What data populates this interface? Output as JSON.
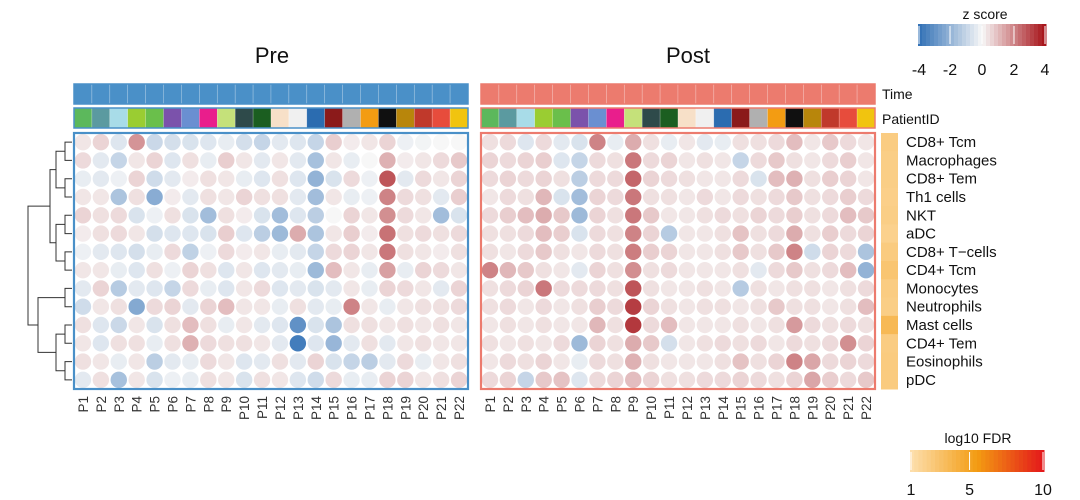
{
  "chart_data": {
    "type": "heatmap",
    "panels": [
      "Pre",
      "Post"
    ],
    "rows": [
      "CD8+ Tcm",
      "Macrophages",
      "CD8+ Tem",
      "Th1 cells",
      "NKT",
      "aDC",
      "CD8+ T−cells",
      "CD4+ Tcm",
      "Monocytes",
      "Neutrophils",
      "Mast cells",
      "CD4+ Tem",
      "Eosinophils",
      "pDC"
    ],
    "columns": [
      "P1",
      "P2",
      "P3",
      "P4",
      "P5",
      "P6",
      "P7",
      "P8",
      "P9",
      "P10",
      "P11",
      "P12",
      "P13",
      "P14",
      "P15",
      "P16",
      "P17",
      "P18",
      "P19",
      "P20",
      "P21",
      "P22"
    ],
    "annotation_tracks": [
      "Time",
      "PatientID"
    ],
    "time_colors": {
      "Pre": "#4a90c8",
      "Post": "#ec7b6e"
    },
    "patient_colors": [
      "#5cb85c",
      "#5b9aa0",
      "#a8dce8",
      "#9acd32",
      "#6abf4b",
      "#7b52ab",
      "#6a8fd1",
      "#e91e8c",
      "#c5e17a",
      "#2e4a4a",
      "#1b5e20",
      "#f7e0c8",
      "#f0f0f0",
      "#2b6cb0",
      "#8b1a1a",
      "#b0b0b0",
      "#f39c12",
      "#101010",
      "#b8860b",
      "#c0392b",
      "#e74c3c",
      "#f1c40f"
    ],
    "zscore_legend": {
      "title": "z score",
      "ticks": [
        "-4",
        "-2",
        "0",
        "2",
        "4"
      ],
      "range": [
        -4,
        4
      ],
      "low_color": "#2f6fb5",
      "mid_color": "#f7f7f7",
      "high_color": "#a50f15"
    },
    "fdr_legend": {
      "title": "log10 FDR",
      "ticks": [
        "1",
        "5",
        "10"
      ],
      "range": [
        1,
        10
      ],
      "low_color": "#fde0b0",
      "high_color": "#e3161b"
    },
    "row_fdr": [
      2.3,
      2.2,
      2.2,
      2.1,
      2.2,
      2.0,
      2.4,
      2.8,
      2.3,
      2.2,
      3.6,
      2.3,
      2.4,
      2.4
    ],
    "dendrogram_order": [
      "CD8+ Tcm",
      "Macrophages",
      "CD8+ Tem",
      "Th1 cells",
      "NKT",
      "aDC",
      "CD8+ T−cells",
      "CD4+ Tcm",
      "Monocytes",
      "Neutrophils",
      "Mast cells",
      "CD4+ Tem",
      "Eosinophils",
      "pDC"
    ],
    "pre_values": [
      [
        0.3,
        0.6,
        -0.5,
        1.7,
        -0.9,
        -0.7,
        -0.6,
        -0.5,
        -0.3,
        -0.7,
        -1.0,
        -0.4,
        -0.5,
        -1.0,
        0.7,
        0.2,
        0.3,
        0.6,
        -0.2,
        -0.1,
        0.0,
        0.0
      ],
      [
        0.5,
        -0.4,
        -1.0,
        0.3,
        0.6,
        -0.5,
        0.4,
        -0.3,
        0.7,
        0.3,
        -0.4,
        0.3,
        -0.4,
        -1.6,
        0.3,
        -0.3,
        0.0,
        1.2,
        0.2,
        0.3,
        0.5,
        0.8
      ],
      [
        -0.3,
        -0.4,
        -0.2,
        0.6,
        -0.8,
        -0.4,
        0.2,
        0.4,
        0.3,
        -0.3,
        -0.5,
        0.4,
        -0.5,
        -2.0,
        -0.6,
        0.5,
        -0.2,
        2.8,
        -0.4,
        0.5,
        0.3,
        0.6
      ],
      [
        0.3,
        0.3,
        -1.5,
        0.4,
        -2.2,
        0.2,
        -0.4,
        0.4,
        0.3,
        0.6,
        0.4,
        0.4,
        -0.4,
        -1.7,
        0.3,
        -0.3,
        -0.2,
        2.0,
        0.5,
        0.4,
        -0.4,
        0.7
      ],
      [
        0.6,
        0.4,
        0.5,
        -0.6,
        -0.2,
        0.4,
        -0.6,
        -1.7,
        0.4,
        0.2,
        -0.6,
        -1.7,
        -0.5,
        -1.2,
        0.0,
        0.6,
        0.3,
        1.8,
        0.5,
        0.3,
        -1.7,
        -0.6
      ],
      [
        0.2,
        0.4,
        0.5,
        0.3,
        -0.7,
        -0.5,
        -0.5,
        -0.6,
        0.7,
        -0.5,
        -1.2,
        -1.8,
        1.3,
        -1.5,
        0.3,
        0.7,
        0.2,
        2.3,
        0.4,
        0.5,
        0.4,
        0.5
      ],
      [
        -0.2,
        -0.4,
        -0.5,
        -0.7,
        -0.3,
        0.5,
        -1.1,
        -0.2,
        0.5,
        0.2,
        0.3,
        -0.3,
        -0.4,
        -1.0,
        0.5,
        0.6,
        0.3,
        2.2,
        0.4,
        0.3,
        0.2,
        0.4
      ],
      [
        0.3,
        0.3,
        -0.3,
        -0.5,
        0.4,
        -0.2,
        0.6,
        0.4,
        -0.5,
        0.3,
        -0.5,
        -0.4,
        -0.3,
        -1.8,
        1.0,
        0.3,
        -0.3,
        1.5,
        -0.3,
        0.6,
        0.5,
        0.3
      ],
      [
        -0.4,
        0.6,
        -1.3,
        -0.4,
        -0.5,
        -1.0,
        0.5,
        -0.3,
        -0.5,
        0.3,
        0.5,
        -0.5,
        -0.4,
        -0.6,
        -0.4,
        0.3,
        -0.3,
        0.6,
        0.5,
        0.3,
        -0.4,
        0.6
      ],
      [
        -0.8,
        0.3,
        0.4,
        -2.3,
        0.5,
        0.6,
        -0.4,
        0.6,
        1.0,
        0.3,
        0.3,
        -0.3,
        0.4,
        -0.4,
        -0.3,
        2.0,
        0.3,
        -0.3,
        0.3,
        0.4,
        0.4,
        0.5
      ],
      [
        0.4,
        -0.5,
        -0.9,
        0.3,
        -0.6,
        0.4,
        1.0,
        0.4,
        -0.3,
        0.3,
        -0.4,
        -0.5,
        -3.0,
        -0.6,
        -1.5,
        0.4,
        0.4,
        0.3,
        0.4,
        0.3,
        0.4,
        0.3
      ],
      [
        0.3,
        -0.5,
        0.4,
        0.4,
        -0.3,
        0.4,
        1.2,
        0.5,
        0.4,
        0.4,
        0.3,
        -0.4,
        -3.6,
        -0.5,
        -1.9,
        -0.4,
        0.4,
        -0.4,
        0.3,
        0.4,
        0.3,
        0.3
      ],
      [
        0.4,
        0.3,
        -0.3,
        0.3,
        -1.2,
        -0.4,
        -0.3,
        0.5,
        0.3,
        -0.5,
        -0.4,
        0.4,
        -0.4,
        0.6,
        -0.6,
        -1.0,
        -1.2,
        -0.4,
        0.5,
        -0.3,
        0.3,
        0.4
      ],
      [
        -0.4,
        0.4,
        -1.6,
        0.3,
        -0.6,
        -0.2,
        -0.3,
        0.4,
        0.3,
        -0.6,
        0.4,
        0.3,
        -0.5,
        -0.8,
        0.5,
        -0.3,
        -0.3,
        0.6,
        0.6,
        0.3,
        0.4,
        0.6
      ]
    ],
    "post_values": [
      [
        0.4,
        0.5,
        -0.5,
        0.5,
        -0.4,
        -0.6,
        2.0,
        -0.3,
        1.3,
        0.4,
        -0.3,
        0.3,
        -0.4,
        -0.3,
        0.4,
        0.4,
        0.5,
        1.0,
        0.3,
        0.8,
        0.5,
        0.3
      ],
      [
        0.6,
        0.5,
        0.6,
        0.7,
        -0.5,
        -1.0,
        0.5,
        0.4,
        2.2,
        0.5,
        0.6,
        0.3,
        0.4,
        0.3,
        -1.0,
        0.5,
        0.8,
        0.4,
        0.3,
        0.5,
        0.7,
        0.3
      ],
      [
        0.5,
        0.6,
        0.5,
        0.6,
        0.4,
        -1.2,
        0.5,
        0.5,
        2.5,
        0.6,
        0.5,
        0.4,
        0.3,
        0.3,
        0.5,
        -0.6,
        1.0,
        1.2,
        0.4,
        0.7,
        0.6,
        0.3
      ],
      [
        0.3,
        0.5,
        0.4,
        1.1,
        -0.6,
        -1.7,
        0.6,
        0.5,
        2.2,
        0.4,
        0.4,
        0.3,
        0.5,
        0.3,
        0.5,
        0.4,
        0.5,
        0.8,
        0.4,
        0.5,
        0.7,
        0.5
      ],
      [
        0.5,
        0.7,
        1.0,
        1.3,
        0.8,
        -1.8,
        0.6,
        0.4,
        2.2,
        0.8,
        0.3,
        0.3,
        0.4,
        0.5,
        0.4,
        0.6,
        0.5,
        0.7,
        0.4,
        0.5,
        1.0,
        0.8
      ],
      [
        0.4,
        0.4,
        0.5,
        1.0,
        0.7,
        -0.6,
        0.5,
        0.4,
        2.0,
        0.6,
        -1.3,
        0.3,
        0.3,
        0.4,
        0.9,
        0.4,
        0.5,
        1.3,
        0.4,
        0.7,
        0.5,
        0.6
      ],
      [
        0.4,
        0.3,
        0.5,
        0.8,
        0.4,
        0.3,
        0.5,
        0.4,
        2.1,
        0.7,
        0.6,
        0.3,
        0.3,
        0.4,
        0.8,
        0.4,
        0.8,
        2.0,
        -0.8,
        0.6,
        0.5,
        -1.5
      ],
      [
        2.0,
        1.1,
        0.8,
        0.4,
        0.3,
        -0.4,
        0.6,
        0.4,
        1.8,
        0.4,
        0.5,
        0.3,
        0.3,
        0.3,
        0.4,
        -0.4,
        0.5,
        0.8,
        0.4,
        0.5,
        1.0,
        -2.0
      ],
      [
        0.4,
        0.5,
        0.6,
        2.2,
        0.5,
        0.5,
        0.5,
        0.4,
        2.8,
        0.4,
        0.3,
        0.3,
        0.4,
        0.3,
        -1.3,
        0.4,
        0.3,
        0.4,
        0.4,
        0.3,
        0.4,
        0.5
      ],
      [
        0.4,
        0.5,
        0.3,
        0.5,
        0.3,
        0.4,
        0.7,
        0.5,
        3.2,
        0.6,
        0.4,
        0.3,
        0.4,
        0.4,
        0.3,
        0.4,
        0.8,
        0.4,
        0.4,
        0.3,
        0.4,
        1.0
      ],
      [
        0.3,
        0.4,
        0.3,
        0.4,
        0.3,
        0.3,
        1.1,
        0.4,
        3.3,
        0.5,
        1.0,
        0.3,
        0.3,
        0.3,
        0.4,
        0.3,
        0.4,
        1.6,
        0.5,
        0.4,
        0.5,
        0.4
      ],
      [
        0.4,
        0.3,
        0.4,
        0.3,
        0.5,
        -1.8,
        0.6,
        0.4,
        1.3,
        0.8,
        -0.7,
        0.3,
        0.4,
        0.5,
        0.4,
        0.5,
        0.3,
        0.5,
        0.4,
        0.5,
        1.8,
        0.6
      ],
      [
        0.3,
        0.5,
        0.4,
        0.6,
        0.3,
        -0.3,
        0.5,
        0.4,
        1.2,
        0.4,
        0.3,
        0.3,
        0.3,
        0.4,
        0.9,
        0.4,
        0.6,
        2.0,
        1.4,
        0.5,
        0.6,
        0.5
      ],
      [
        0.5,
        0.6,
        -1.0,
        0.8,
        0.9,
        -0.5,
        0.5,
        0.6,
        1.0,
        0.6,
        0.4,
        0.4,
        0.5,
        0.5,
        0.6,
        0.5,
        0.4,
        0.6,
        1.4,
        0.7,
        0.5,
        0.8
      ]
    ]
  }
}
